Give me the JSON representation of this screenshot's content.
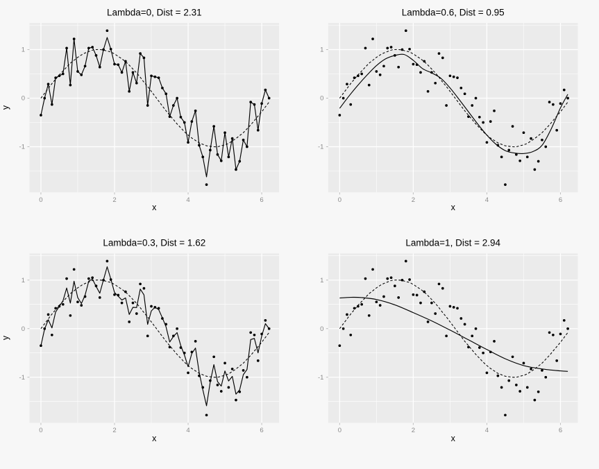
{
  "figure": {
    "kind": "2x2 faceted scatter-plot figure comparing smoothing fits",
    "page_bg": "#f7f7f7"
  },
  "chart_data": {
    "type": "scatter",
    "description": "Four panels share the same noisy sine data. Dots = data, dashed line = sin(x) truth, solid line = smoothing fit with given lambda.",
    "axes": {
      "x": {
        "label": "x",
        "ticks": [
          0,
          2,
          4,
          6
        ],
        "minor_ticks": [
          1,
          3,
          5
        ],
        "range": [
          -0.31,
          6.47
        ]
      },
      "y": {
        "label": "y",
        "ticks": [
          -1,
          0,
          1
        ],
        "minor_ticks": [
          -1.5,
          -0.5,
          0.5,
          1.5
        ],
        "range": [
          -1.94,
          1.55
        ]
      }
    },
    "points": {
      "x": [
        0.0,
        0.1,
        0.2,
        0.3,
        0.4,
        0.5,
        0.6,
        0.7,
        0.8,
        0.9,
        1.0,
        1.1,
        1.2,
        1.3,
        1.4,
        1.5,
        1.6,
        1.7,
        1.8,
        1.9,
        2.0,
        2.1,
        2.2,
        2.3,
        2.4,
        2.5,
        2.6,
        2.7,
        2.8,
        2.9,
        3.0,
        3.1,
        3.2,
        3.3,
        3.4,
        3.5,
        3.6,
        3.7,
        3.8,
        3.9,
        4.0,
        4.1,
        4.2,
        4.3,
        4.4,
        4.5,
        4.6,
        4.7,
        4.8,
        4.9,
        5.0,
        5.1,
        5.2,
        5.3,
        5.4,
        5.5,
        5.6,
        5.7,
        5.8,
        5.9,
        6.0,
        6.1,
        6.2
      ],
      "y": [
        -0.35,
        0.0,
        0.29,
        -0.13,
        0.42,
        0.46,
        0.5,
        1.03,
        0.27,
        1.22,
        0.55,
        0.48,
        0.66,
        1.03,
        1.05,
        0.88,
        0.64,
        1.0,
        1.39,
        1.01,
        0.7,
        0.69,
        0.53,
        0.76,
        0.14,
        0.53,
        0.31,
        0.92,
        0.83,
        -0.15,
        0.46,
        0.44,
        0.42,
        0.21,
        0.09,
        -0.38,
        -0.15,
        0.0,
        -0.39,
        -0.5,
        -0.91,
        -0.48,
        -0.26,
        -0.97,
        -1.21,
        -1.78,
        -1.07,
        -0.58,
        -1.16,
        -1.29,
        -0.71,
        -1.21,
        -0.83,
        -1.47,
        -1.3,
        -0.86,
        -1.0,
        -0.08,
        -0.13,
        -0.66,
        -0.11,
        0.17,
        0.0
      ]
    },
    "dashed_sine": {
      "label": "sin(x)",
      "y": [
        0.0,
        0.1,
        0.2,
        0.3,
        0.39,
        0.48,
        0.56,
        0.64,
        0.72,
        0.78,
        0.84,
        0.89,
        0.93,
        0.96,
        0.99,
        1.0,
        1.0,
        0.99,
        0.97,
        0.95,
        0.91,
        0.86,
        0.81,
        0.75,
        0.68,
        0.6,
        0.52,
        0.43,
        0.33,
        0.24,
        0.14,
        0.04,
        -0.06,
        -0.16,
        -0.26,
        -0.35,
        -0.44,
        -0.53,
        -0.61,
        -0.69,
        -0.76,
        -0.82,
        -0.87,
        -0.92,
        -0.95,
        -0.98,
        -0.99,
        -1.0,
        -1.0,
        -0.98,
        -0.96,
        -0.93,
        -0.88,
        -0.83,
        -0.77,
        -0.71,
        -0.63,
        -0.55,
        -0.46,
        -0.37,
        -0.28,
        -0.18,
        -0.08
      ]
    },
    "panels": [
      {
        "id": "lambda-0",
        "title": "Lambda=0, Dist = 2.31",
        "lambda": 0,
        "dist": 2.31,
        "solid_line": {
          "mode": "interpolate",
          "damping": 0,
          "adjust": {
            "18": 1.25,
            "45": -1.62
          }
        }
      },
      {
        "id": "lambda-0.6",
        "title": "Lambda=0.6, Dist = 0.95",
        "lambda": 0.6,
        "dist": 0.95,
        "solid_line": {
          "mode": "samples",
          "xy": [
            [
              0,
              -0.21
            ],
            [
              0.25,
              0.04
            ],
            [
              0.5,
              0.27
            ],
            [
              0.75,
              0.48
            ],
            [
              1,
              0.67
            ],
            [
              1.25,
              0.81
            ],
            [
              1.5,
              0.88
            ],
            [
              1.75,
              0.9
            ],
            [
              2,
              0.78
            ],
            [
              2.25,
              0.61
            ],
            [
              2.5,
              0.52
            ],
            [
              2.75,
              0.41
            ],
            [
              3,
              0.21
            ],
            [
              3.25,
              -0.03
            ],
            [
              3.5,
              -0.28
            ],
            [
              3.75,
              -0.53
            ],
            [
              4,
              -0.76
            ],
            [
              4.25,
              -0.95
            ],
            [
              4.5,
              -1.08
            ],
            [
              4.75,
              -1.13
            ],
            [
              5,
              -1.14
            ],
            [
              5.25,
              -1.1
            ],
            [
              5.5,
              -0.97
            ],
            [
              5.75,
              -0.63
            ],
            [
              6,
              -0.2
            ],
            [
              6.2,
              0.08
            ]
          ]
        }
      },
      {
        "id": "lambda-0.3",
        "title": "Lambda=0.3, Dist = 1.62",
        "lambda": 0.3,
        "dist": 1.62,
        "solid_line": {
          "mode": "interpolate",
          "damping": 0.3
        }
      },
      {
        "id": "lambda-1",
        "title": "Lambda=1, Dist = 2.94",
        "lambda": 1,
        "dist": 2.94,
        "solid_line": {
          "mode": "samples",
          "xy": [
            [
              0,
              0.63
            ],
            [
              0.3,
              0.645
            ],
            [
              0.6,
              0.64
            ],
            [
              1,
              0.6
            ],
            [
              1.5,
              0.49
            ],
            [
              2,
              0.33
            ],
            [
              2.5,
              0.16
            ],
            [
              3,
              -0.03
            ],
            [
              3.5,
              -0.23
            ],
            [
              4,
              -0.43
            ],
            [
              4.5,
              -0.62
            ],
            [
              5,
              -0.76
            ],
            [
              5.5,
              -0.83
            ],
            [
              6,
              -0.87
            ],
            [
              6.2,
              -0.88
            ]
          ]
        }
      }
    ],
    "style": {
      "panel_bg": "#ebebeb",
      "grid_color": "#ffffff",
      "point_color": "#000000",
      "line_color": "#000000",
      "tick_label_color": "#8a8a8a",
      "tick_mark_color": "#bdbdbd",
      "title_color": "#000000"
    }
  }
}
